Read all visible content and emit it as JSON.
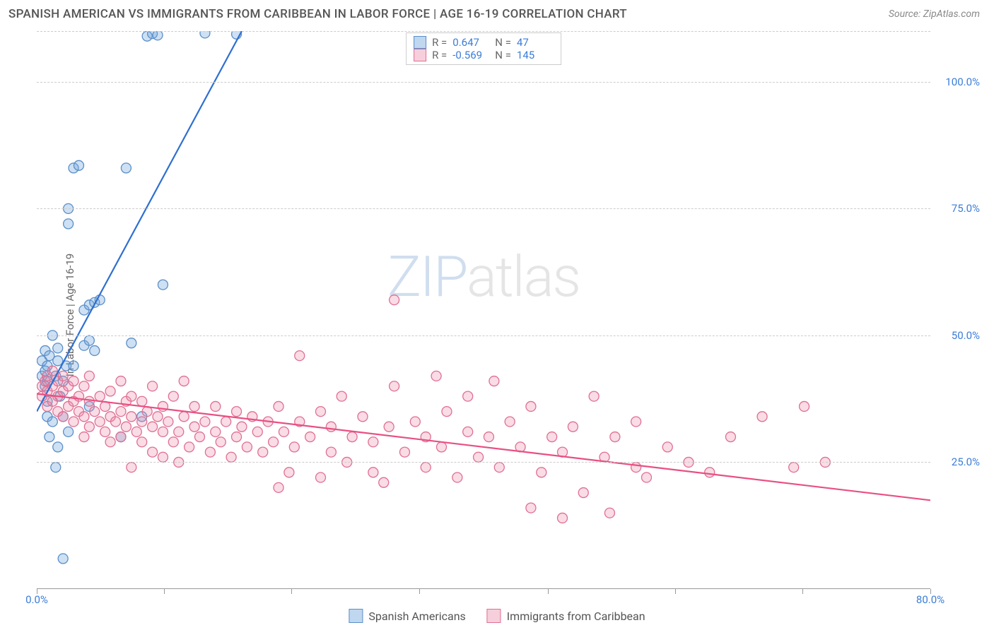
{
  "title": "SPANISH AMERICAN VS IMMIGRANTS FROM CARIBBEAN IN LABOR FORCE | AGE 16-19 CORRELATION CHART",
  "source": "Source: ZipAtlas.com",
  "ylabel": "In Labor Force | Age 16-19",
  "watermark": {
    "a": "ZIP",
    "b": "atlas"
  },
  "chart": {
    "type": "scatter",
    "xlim": [
      0,
      85
    ],
    "ylim": [
      0,
      110
    ],
    "xticks": [
      {
        "pos": 0,
        "label": "0.0%"
      },
      {
        "pos": 85,
        "label": "80.0%"
      }
    ],
    "xtick_marks": [
      0,
      12.1,
      24.2,
      36.4,
      48.6,
      60.7,
      72.8,
      85
    ],
    "yticks": [
      {
        "pos": 25,
        "label": "25.0%"
      },
      {
        "pos": 50,
        "label": "50.0%"
      },
      {
        "pos": 75,
        "label": "75.0%"
      },
      {
        "pos": 100,
        "label": "100.0%"
      }
    ],
    "grid_y": [
      25,
      50,
      75,
      100,
      110
    ],
    "background_color": "#ffffff",
    "grid_color": "#cccccc",
    "marker_radius": 7,
    "marker_stroke_width": 1.3,
    "trend_stroke_width": 2.2,
    "series": [
      {
        "name": "Spanish Americans",
        "fill": "rgba(115,165,220,0.35)",
        "stroke": "#5a8fc8",
        "swatch_fill": "rgba(130,175,225,0.5)",
        "swatch_stroke": "#5a8fc8",
        "R": "0.647",
        "N": "47",
        "trend": {
          "x1": 0,
          "y1": 35,
          "x2": 19.5,
          "y2": 110,
          "color": "#2e6fd0"
        },
        "points": [
          [
            0.5,
            42
          ],
          [
            0.5,
            45
          ],
          [
            0.8,
            40
          ],
          [
            0.8,
            43
          ],
          [
            0.8,
            47
          ],
          [
            1,
            34
          ],
          [
            1,
            37
          ],
          [
            1,
            41
          ],
          [
            1,
            44
          ],
          [
            1.2,
            30
          ],
          [
            1.2,
            46
          ],
          [
            1.5,
            33
          ],
          [
            1.5,
            50
          ],
          [
            1.8,
            24
          ],
          [
            1.8,
            42
          ],
          [
            2,
            28
          ],
          [
            2,
            45
          ],
          [
            2,
            47.5
          ],
          [
            2.2,
            38
          ],
          [
            2.5,
            6
          ],
          [
            2.5,
            34
          ],
          [
            2.5,
            41
          ],
          [
            2.8,
            44
          ],
          [
            3,
            31
          ],
          [
            3,
            72
          ],
          [
            3,
            75
          ],
          [
            3.5,
            44
          ],
          [
            3.5,
            83
          ],
          [
            4,
            83.5
          ],
          [
            4.5,
            48
          ],
          [
            4.5,
            55
          ],
          [
            5,
            36
          ],
          [
            5,
            49
          ],
          [
            5,
            56
          ],
          [
            5.5,
            47
          ],
          [
            5.5,
            56.5
          ],
          [
            6,
            57
          ],
          [
            8,
            30
          ],
          [
            8.5,
            83
          ],
          [
            9,
            48.5
          ],
          [
            10,
            34
          ],
          [
            10.5,
            109
          ],
          [
            11,
            109.5
          ],
          [
            11.5,
            109.2
          ],
          [
            12,
            60
          ],
          [
            16,
            109.6
          ],
          [
            19,
            109.4
          ]
        ]
      },
      {
        "name": "Immigrants from Caribbean",
        "fill": "rgba(235,140,170,0.3)",
        "stroke": "#e06f92",
        "swatch_fill": "rgba(240,160,185,0.5)",
        "swatch_stroke": "#e06f92",
        "R": "-0.569",
        "N": "145",
        "trend": {
          "x1": 0,
          "y1": 38.5,
          "x2": 85,
          "y2": 17.5,
          "color": "#e94f82"
        },
        "points": [
          [
            0.5,
            38
          ],
          [
            0.5,
            40
          ],
          [
            0.8,
            41
          ],
          [
            1,
            36
          ],
          [
            1,
            39
          ],
          [
            1,
            42
          ],
          [
            1.5,
            37
          ],
          [
            1.5,
            40
          ],
          [
            1.5,
            43
          ],
          [
            2,
            35
          ],
          [
            2,
            38
          ],
          [
            2,
            41
          ],
          [
            2.5,
            34
          ],
          [
            2.5,
            39
          ],
          [
            2.5,
            42
          ],
          [
            3,
            36
          ],
          [
            3,
            40
          ],
          [
            3.5,
            33
          ],
          [
            3.5,
            37
          ],
          [
            3.5,
            41
          ],
          [
            4,
            35
          ],
          [
            4,
            38
          ],
          [
            4.5,
            30
          ],
          [
            4.5,
            34
          ],
          [
            4.5,
            40
          ],
          [
            5,
            32
          ],
          [
            5,
            37
          ],
          [
            5,
            42
          ],
          [
            5.5,
            35
          ],
          [
            6,
            33
          ],
          [
            6,
            38
          ],
          [
            6.5,
            31
          ],
          [
            6.5,
            36
          ],
          [
            7,
            29
          ],
          [
            7,
            34
          ],
          [
            7,
            39
          ],
          [
            7.5,
            33
          ],
          [
            8,
            30
          ],
          [
            8,
            35
          ],
          [
            8,
            41
          ],
          [
            8.5,
            32
          ],
          [
            8.5,
            37
          ],
          [
            9,
            24
          ],
          [
            9,
            34
          ],
          [
            9,
            38
          ],
          [
            9.5,
            31
          ],
          [
            10,
            29
          ],
          [
            10,
            33
          ],
          [
            10,
            37
          ],
          [
            10.5,
            35
          ],
          [
            11,
            27
          ],
          [
            11,
            32
          ],
          [
            11,
            40
          ],
          [
            11.5,
            34
          ],
          [
            12,
            26
          ],
          [
            12,
            31
          ],
          [
            12,
            36
          ],
          [
            12.5,
            33
          ],
          [
            13,
            29
          ],
          [
            13,
            38
          ],
          [
            13.5,
            25
          ],
          [
            13.5,
            31
          ],
          [
            14,
            34
          ],
          [
            14,
            41
          ],
          [
            14.5,
            28
          ],
          [
            15,
            32
          ],
          [
            15,
            36
          ],
          [
            15.5,
            30
          ],
          [
            16,
            33
          ],
          [
            16.5,
            27
          ],
          [
            17,
            31
          ],
          [
            17,
            36
          ],
          [
            17.5,
            29
          ],
          [
            18,
            33
          ],
          [
            18.5,
            26
          ],
          [
            19,
            30
          ],
          [
            19,
            35
          ],
          [
            19.5,
            32
          ],
          [
            20,
            28
          ],
          [
            20.5,
            34
          ],
          [
            21,
            31
          ],
          [
            21.5,
            27
          ],
          [
            22,
            33
          ],
          [
            22.5,
            29
          ],
          [
            23,
            20
          ],
          [
            23,
            36
          ],
          [
            23.5,
            31
          ],
          [
            24,
            23
          ],
          [
            24.5,
            28
          ],
          [
            25,
            33
          ],
          [
            25,
            46
          ],
          [
            26,
            30
          ],
          [
            27,
            22
          ],
          [
            27,
            35
          ],
          [
            28,
            27
          ],
          [
            28,
            32
          ],
          [
            29,
            38
          ],
          [
            29.5,
            25
          ],
          [
            30,
            30
          ],
          [
            31,
            34
          ],
          [
            32,
            23
          ],
          [
            32,
            29
          ],
          [
            33,
            21
          ],
          [
            33.5,
            32
          ],
          [
            34,
            40
          ],
          [
            34,
            57
          ],
          [
            35,
            27
          ],
          [
            36,
            33
          ],
          [
            37,
            24
          ],
          [
            37,
            30
          ],
          [
            38,
            42
          ],
          [
            38.5,
            28
          ],
          [
            39,
            35
          ],
          [
            40,
            22
          ],
          [
            41,
            31
          ],
          [
            41,
            38
          ],
          [
            42,
            26
          ],
          [
            43,
            30
          ],
          [
            43.5,
            41
          ],
          [
            44,
            24
          ],
          [
            45,
            33
          ],
          [
            46,
            28
          ],
          [
            47,
            16
          ],
          [
            47,
            36
          ],
          [
            48,
            23
          ],
          [
            49,
            30
          ],
          [
            50,
            14
          ],
          [
            50,
            27
          ],
          [
            51,
            32
          ],
          [
            52,
            19
          ],
          [
            53,
            38
          ],
          [
            54,
            26
          ],
          [
            54.5,
            15
          ],
          [
            55,
            30
          ],
          [
            57,
            24
          ],
          [
            57,
            33
          ],
          [
            58,
            22
          ],
          [
            60,
            28
          ],
          [
            62,
            25
          ],
          [
            64,
            23
          ],
          [
            66,
            30
          ],
          [
            69,
            34
          ],
          [
            72,
            24
          ],
          [
            73,
            36
          ],
          [
            75,
            25
          ]
        ]
      }
    ]
  },
  "legend_top": [
    {
      "series": 0,
      "R_label": "R =",
      "N_label": "N ="
    },
    {
      "series": 1,
      "R_label": "R =",
      "N_label": "N ="
    }
  ],
  "legend_bottom": [
    {
      "series": 0
    },
    {
      "series": 1
    }
  ]
}
